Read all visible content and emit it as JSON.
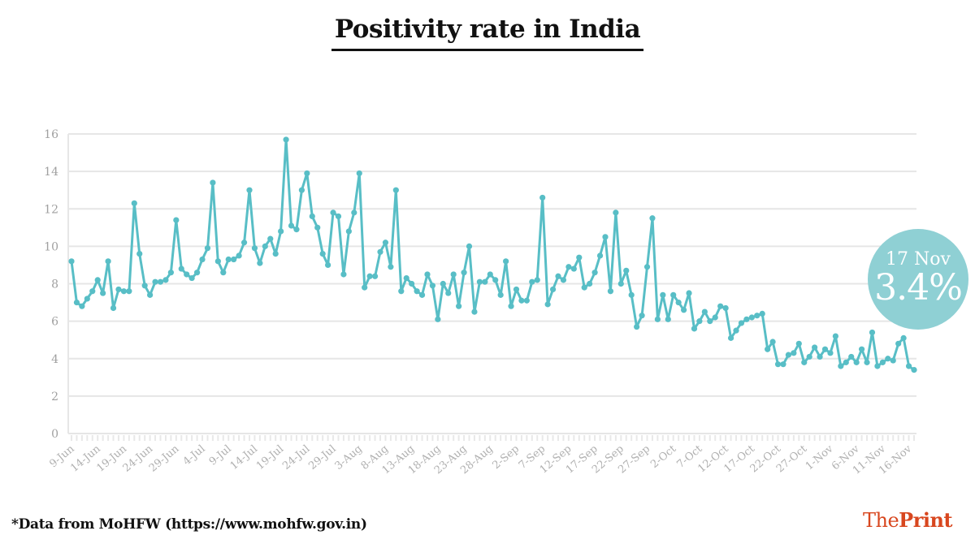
{
  "header": {
    "title": "Positivity rate in India"
  },
  "callout": {
    "date": "17 Nov",
    "value": "3.4%"
  },
  "footer": {
    "source": "*Data from MoHFW (https://www.mohfw.gov.in)",
    "logo_pre": "The",
    "logo_bold": "Print"
  },
  "colors": {
    "series": "#58bec6",
    "callout_bg": "#8fd0d4",
    "logo": "#d8471f",
    "grid": "#e6e6e6"
  },
  "chart_data": {
    "type": "line",
    "title": "Positivity rate in India",
    "xlabel": "",
    "ylabel": "",
    "ylim": [
      0,
      16
    ],
    "yticks": [
      0,
      2,
      4,
      6,
      8,
      10,
      12,
      14,
      16
    ],
    "grid": true,
    "x_start": "9-Jun",
    "x_end": "17-Nov",
    "xtick_labels": [
      "9-Jun",
      "14-Jun",
      "19-Jun",
      "24-Jun",
      "29-Jun",
      "4-Jul",
      "9-Jul",
      "14-Jul",
      "19-Jul",
      "24-Jul",
      "29-Jul",
      "3-Aug",
      "8-Aug",
      "13-Aug",
      "18-Aug",
      "23-Aug",
      "28-Aug",
      "2-Sep",
      "7-Sep",
      "12-Sep",
      "17-Sep",
      "22-Sep",
      "27-Sep",
      "2-Oct",
      "7-Oct",
      "12-Oct",
      "17-Oct",
      "22-Oct",
      "27-Oct",
      "1-Nov",
      "6-Nov",
      "11-Nov",
      "16-Nov"
    ],
    "xtick_interval_days": 5,
    "series": [
      {
        "name": "Positivity rate (%)",
        "values": [
          9.2,
          7.0,
          6.8,
          7.2,
          7.6,
          8.2,
          7.5,
          9.2,
          6.7,
          7.7,
          7.6,
          7.6,
          12.3,
          9.6,
          7.9,
          7.4,
          8.1,
          8.1,
          8.2,
          8.6,
          11.4,
          8.8,
          8.5,
          8.3,
          8.6,
          9.3,
          9.9,
          13.4,
          9.2,
          8.6,
          9.3,
          9.3,
          9.5,
          10.2,
          13.0,
          9.9,
          9.1,
          10.0,
          10.4,
          9.6,
          10.8,
          15.7,
          11.1,
          10.9,
          13.0,
          13.9,
          11.6,
          11.0,
          9.6,
          9.0,
          11.8,
          11.6,
          8.5,
          10.8,
          11.8,
          13.9,
          7.8,
          8.4,
          8.4,
          9.7,
          10.2,
          8.9,
          13.0,
          7.6,
          8.3,
          8.0,
          7.6,
          7.4,
          8.5,
          7.9,
          6.1,
          8.0,
          7.5,
          8.5,
          6.8,
          8.6,
          10.0,
          6.5,
          8.1,
          8.1,
          8.5,
          8.2,
          7.4,
          9.2,
          6.8,
          7.7,
          7.1,
          7.1,
          8.1,
          8.2,
          12.6,
          6.9,
          7.7,
          8.4,
          8.2,
          8.9,
          8.8,
          9.4,
          7.8,
          8.0,
          8.6,
          9.5,
          10.5,
          7.6,
          11.8,
          8.0,
          8.7,
          7.4,
          5.7,
          6.3,
          8.9,
          11.5,
          6.1,
          7.4,
          6.1,
          7.4,
          7.0,
          6.6,
          7.5,
          5.6,
          6.0,
          6.5,
          6.0,
          6.2,
          6.8,
          6.7,
          5.1,
          5.5,
          5.9,
          6.1,
          6.2,
          6.3,
          6.4,
          4.5,
          4.9,
          3.7,
          3.7,
          4.2,
          4.3,
          4.8,
          3.8,
          4.1,
          4.6,
          4.1,
          4.5,
          4.3,
          5.2,
          3.6,
          3.8,
          4.1,
          3.8,
          4.5,
          3.8,
          5.4,
          3.6,
          3.8,
          4.0,
          3.9,
          4.8,
          5.1,
          3.6,
          3.4
        ]
      }
    ],
    "annotation": {
      "label": "17 Nov",
      "value": "3.4%"
    }
  }
}
